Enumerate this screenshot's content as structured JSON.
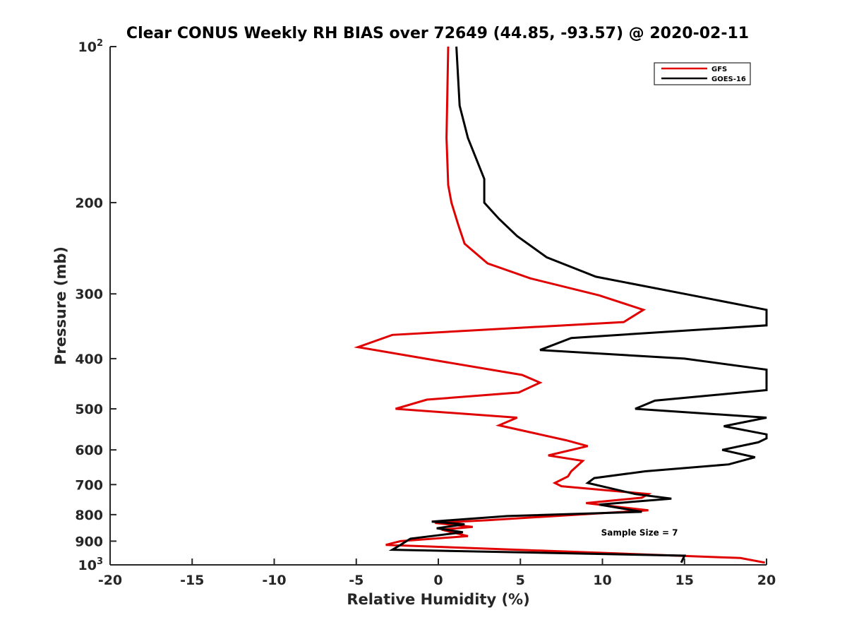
{
  "chart_data": {
    "type": "line",
    "title": "Clear CONUS Weekly RH BIAS over 72649 (44.85, -93.57) @ 2020-02-11",
    "xlabel": "Relative Humidity (%)",
    "ylabel": "Pressure (mb)",
    "xlim": [
      -20,
      20
    ],
    "ylim": [
      100,
      1000
    ],
    "yscale": "log",
    "y_reversed": true,
    "grid": false,
    "legend_position": "top-right",
    "x_ticks": [
      -20,
      -15,
      -10,
      -5,
      0,
      5,
      10,
      15,
      20
    ],
    "y_ticks": [
      {
        "value": 100,
        "label": "10",
        "sup": "2"
      },
      {
        "value": 200,
        "label": "200",
        "sup": ""
      },
      {
        "value": 300,
        "label": "300",
        "sup": ""
      },
      {
        "value": 400,
        "label": "400",
        "sup": ""
      },
      {
        "value": 500,
        "label": "500",
        "sup": ""
      },
      {
        "value": 600,
        "label": "600",
        "sup": ""
      },
      {
        "value": 700,
        "label": "700",
        "sup": ""
      },
      {
        "value": 800,
        "label": "800",
        "sup": ""
      },
      {
        "value": 900,
        "label": "900",
        "sup": ""
      },
      {
        "value": 1000,
        "label": "10",
        "sup": "3"
      }
    ],
    "annotation": "Sample Size = 7",
    "annotation_pos": {
      "x": 12.5,
      "y": 900
    },
    "series": [
      {
        "name": "GFS",
        "color": "#e00000",
        "points": [
          [
            0.6,
            100
          ],
          [
            0.5,
            150
          ],
          [
            0.6,
            185
          ],
          [
            0.8,
            200
          ],
          [
            1.2,
            220
          ],
          [
            1.6,
            240
          ],
          [
            3.0,
            262
          ],
          [
            5.6,
            280
          ],
          [
            9.8,
            302
          ],
          [
            12.5,
            322
          ],
          [
            11.3,
            340
          ],
          [
            -2.8,
            360
          ],
          [
            -4.9,
            380
          ],
          [
            -0.8,
            400
          ],
          [
            5.1,
            430
          ],
          [
            6.2,
            445
          ],
          [
            4.9,
            465
          ],
          [
            -0.7,
            480
          ],
          [
            -2.6,
            500
          ],
          [
            4.8,
            520
          ],
          [
            3.7,
            538
          ],
          [
            7.8,
            575
          ],
          [
            9.1,
            590
          ],
          [
            6.7,
            615
          ],
          [
            8.8,
            630
          ],
          [
            8.1,
            660
          ],
          [
            7.9,
            675
          ],
          [
            7.1,
            695
          ],
          [
            7.5,
            705
          ],
          [
            12.8,
            730
          ],
          [
            12.4,
            742
          ],
          [
            9.0,
            760
          ],
          [
            12.8,
            785
          ],
          [
            3.0,
            820
          ],
          [
            -0.2,
            830
          ],
          [
            2.1,
            845
          ],
          [
            0.2,
            855
          ],
          [
            1.8,
            880
          ],
          [
            -2.3,
            900
          ],
          [
            -3.2,
            915
          ],
          [
            18.4,
            970
          ],
          [
            19.9,
            990
          ]
        ]
      },
      {
        "name": "GOES-16",
        "color": "#000000",
        "points": [
          [
            1.1,
            100
          ],
          [
            1.3,
            130
          ],
          [
            1.8,
            150
          ],
          [
            2.8,
            180
          ],
          [
            2.8,
            200
          ],
          [
            3.7,
            215
          ],
          [
            4.8,
            232
          ],
          [
            6.6,
            255
          ],
          [
            9.6,
            278
          ],
          [
            15.0,
            300
          ],
          [
            20.0,
            322
          ],
          [
            20.0,
            345
          ],
          [
            8.1,
            365
          ],
          [
            6.2,
            385
          ],
          [
            15.0,
            400
          ],
          [
            20.0,
            420
          ],
          [
            20.0,
            460
          ],
          [
            13.2,
            482
          ],
          [
            12.0,
            500
          ],
          [
            20.0,
            520
          ],
          [
            17.4,
            540
          ],
          [
            20.0,
            560
          ],
          [
            20.0,
            570
          ],
          [
            19.5,
            580
          ],
          [
            17.3,
            600
          ],
          [
            19.3,
            620
          ],
          [
            17.7,
            640
          ],
          [
            12.6,
            660
          ],
          [
            9.5,
            680
          ],
          [
            9.1,
            695
          ],
          [
            12.0,
            730
          ],
          [
            14.2,
            745
          ],
          [
            9.8,
            765
          ],
          [
            12.4,
            790
          ],
          [
            4.2,
            805
          ],
          [
            -0.4,
            825
          ],
          [
            1.6,
            835
          ],
          [
            -0.1,
            850
          ],
          [
            1.5,
            865
          ],
          [
            -1.7,
            890
          ],
          [
            -2.3,
            915
          ],
          [
            -2.8,
            935
          ],
          [
            15.0,
            960
          ],
          [
            14.8,
            990
          ]
        ]
      }
    ]
  }
}
